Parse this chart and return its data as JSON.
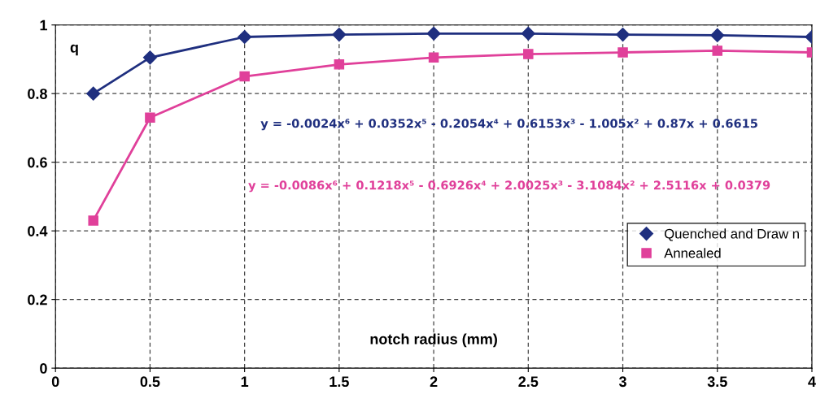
{
  "chart_data": {
    "type": "line",
    "xlabel": "notch radius (mm)",
    "ylabel": "q",
    "x": [
      0.2,
      0.5,
      1,
      1.5,
      2,
      2.5,
      3,
      3.5,
      4
    ],
    "series": [
      {
        "name": "Quenched and Draw n",
        "color": "#1f2f7f",
        "marker": "diamond",
        "values": [
          0.8,
          0.905,
          0.965,
          0.972,
          0.975,
          0.975,
          0.972,
          0.97,
          0.965
        ]
      },
      {
        "name": "Annealed",
        "color": "#e0409a",
        "marker": "square",
        "values": [
          0.43,
          0.73,
          0.85,
          0.885,
          0.905,
          0.915,
          0.92,
          0.925,
          0.92
        ]
      }
    ],
    "annotations": [
      "y = -0.0024x⁶ + 0.0352x⁵ - 0.2054x⁴ + 0.6153x³ - 1.005x² + 0.87x + 0.6615",
      "y = -0.0086x⁶ + 0.1218x⁵ - 0.6926x⁴ + 2.0025x³ - 3.1084x² + 2.5116x + 0.0379"
    ],
    "xlim": [
      0,
      4
    ],
    "ylim": [
      0,
      1
    ],
    "xticks": [
      0,
      0.5,
      1,
      1.5,
      2,
      2.5,
      3,
      3.5,
      4
    ],
    "yticks": [
      0,
      0.2,
      0.4,
      0.6,
      0.8,
      1
    ],
    "grid": true,
    "legend": "right",
    "line_style": "solid"
  }
}
